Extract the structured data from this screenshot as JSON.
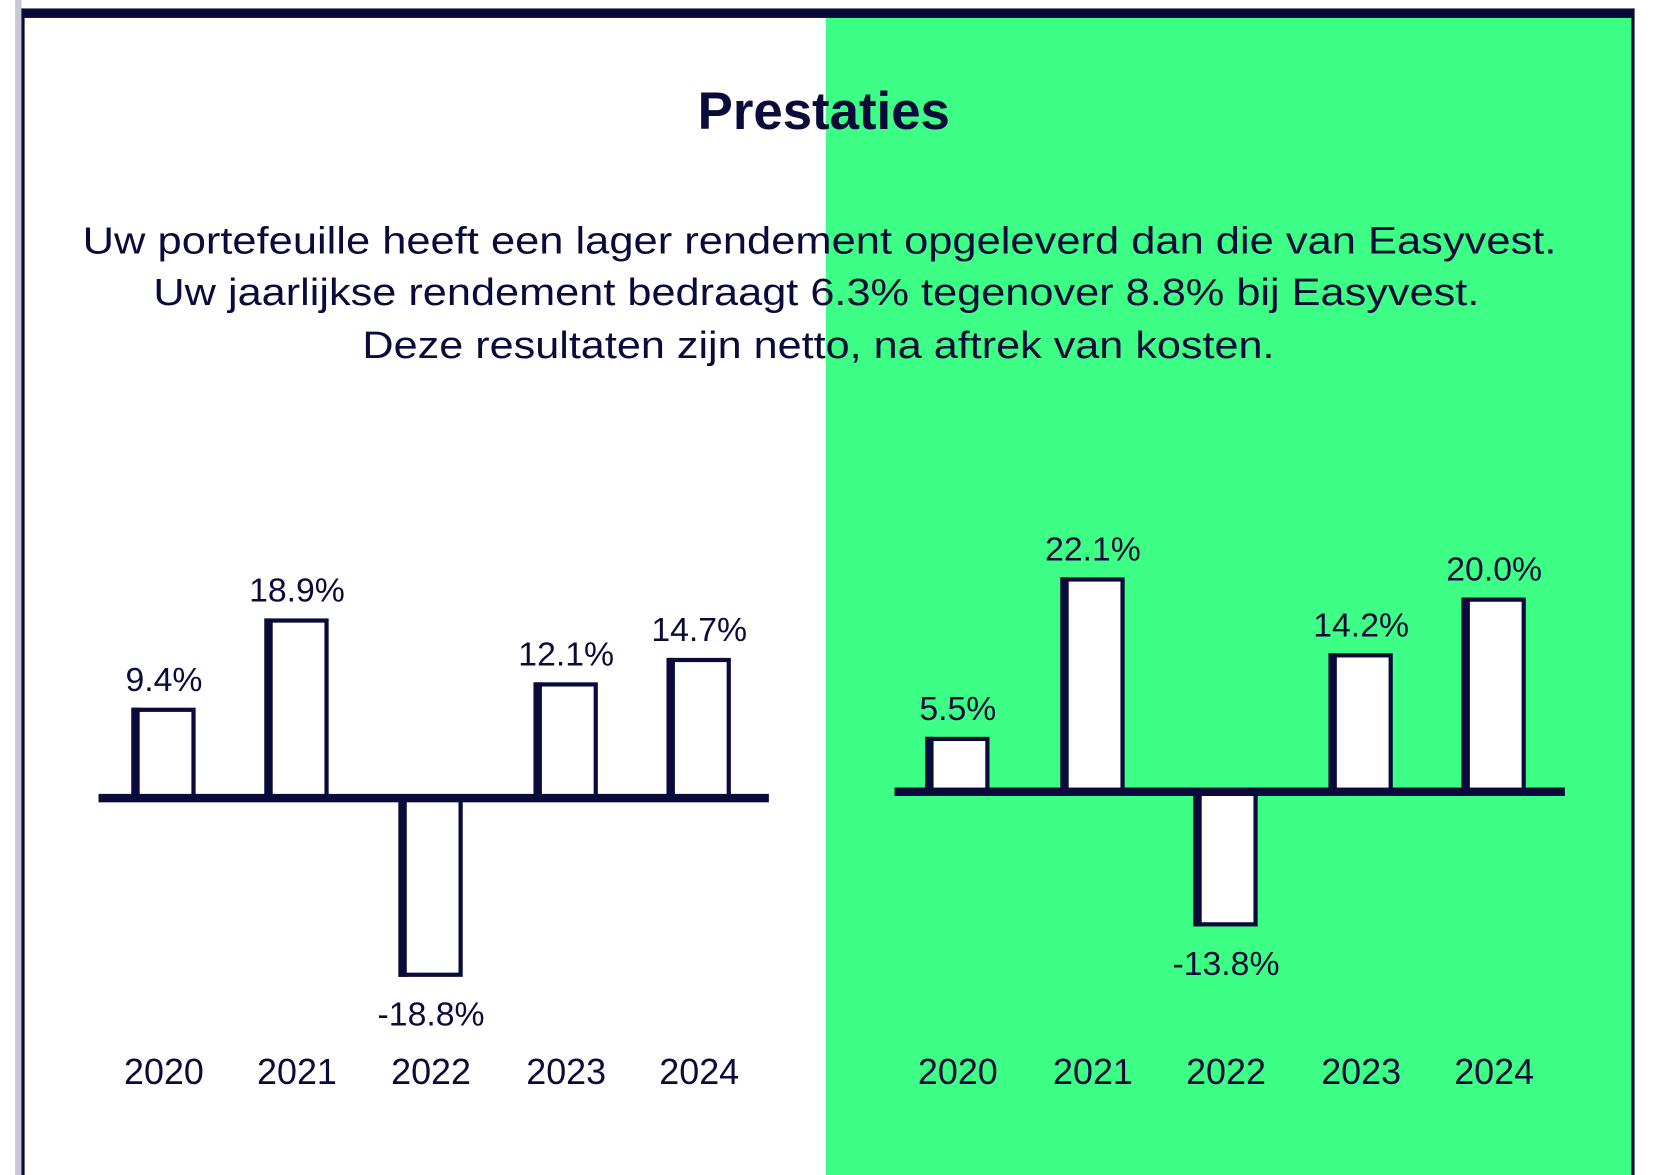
{
  "title": "Prestaties",
  "intro_lines": [
    "Uw portefeuille heeft een lager rendement opgeleverd dan die van Easyvest.",
    "Uw jaarlijkse rendement bedraagt 6.3% tegenover 8.8% bij Easyvest.",
    "Deze resultaten zijn netto, na aftrek van kosten."
  ],
  "colors": {
    "navy": "#0b0b3b",
    "green": "#3dff85",
    "bar_fill": "#ffffff"
  },
  "chart_data": [
    {
      "type": "bar",
      "name": "portfolio",
      "categories": [
        "2020",
        "2021",
        "2022",
        "2023",
        "2024"
      ],
      "values": [
        9.4,
        18.9,
        -18.8,
        12.1,
        14.7
      ],
      "labels": [
        "9.4%",
        "18.9%",
        "-18.8%",
        "12.1%",
        "14.7%"
      ],
      "background": "white",
      "grid": false
    },
    {
      "type": "bar",
      "name": "easyvest",
      "categories": [
        "2020",
        "2021",
        "2022",
        "2023",
        "2024"
      ],
      "values": [
        5.5,
        22.1,
        -13.8,
        14.2,
        20.0
      ],
      "labels": [
        "5.5%",
        "22.1%",
        "-13.8%",
        "14.2%",
        "20.0%"
      ],
      "background": "green",
      "grid": false
    }
  ]
}
